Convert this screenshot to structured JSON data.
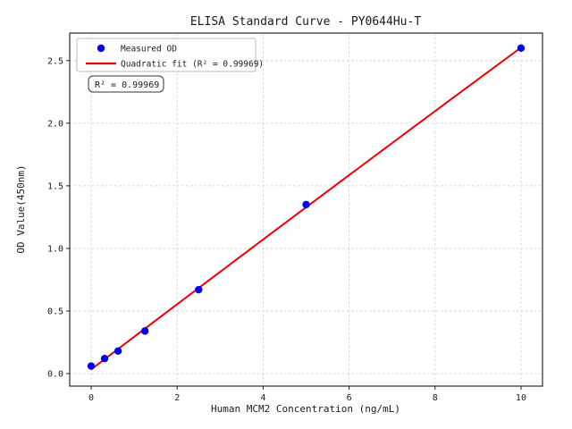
{
  "chart_data": {
    "type": "scatter",
    "title": "ELISA Standard Curve - PY0644Hu-T",
    "xlabel": "Human MCM2 Concentration (ng/mL)",
    "ylabel": "OD Value(450nm)",
    "annotation": "R² = 0.99969",
    "series": [
      {
        "name": "Measured OD",
        "type": "scatter",
        "color": "#0000ee",
        "x": [
          0,
          0.312,
          0.625,
          1.25,
          2.5,
          5,
          10
        ],
        "y": [
          0.06,
          0.12,
          0.18,
          0.34,
          0.67,
          1.35,
          2.6
        ]
      },
      {
        "name": "Quadratic fit (R² = 0.99969)",
        "type": "line",
        "fit": "quadratic",
        "r_squared": 0.99969,
        "color": "#ee0000",
        "x_range": [
          0,
          10
        ]
      }
    ],
    "xlim": [
      -0.5,
      10.5
    ],
    "ylim": [
      -0.1,
      2.72
    ],
    "xticks": [
      0,
      2,
      4,
      6,
      8,
      10
    ],
    "xtick_labels": [
      "0",
      "2",
      "4",
      "6",
      "8",
      "10"
    ],
    "yticks": [
      0,
      0.5,
      1.0,
      1.5,
      2.0,
      2.5
    ],
    "ytick_labels": [
      "0.0",
      "0.5",
      "1.0",
      "1.5",
      "2.0",
      "2.5"
    ],
    "grid": true,
    "grid_color": "#cccccc",
    "legend_position": "upper left"
  }
}
